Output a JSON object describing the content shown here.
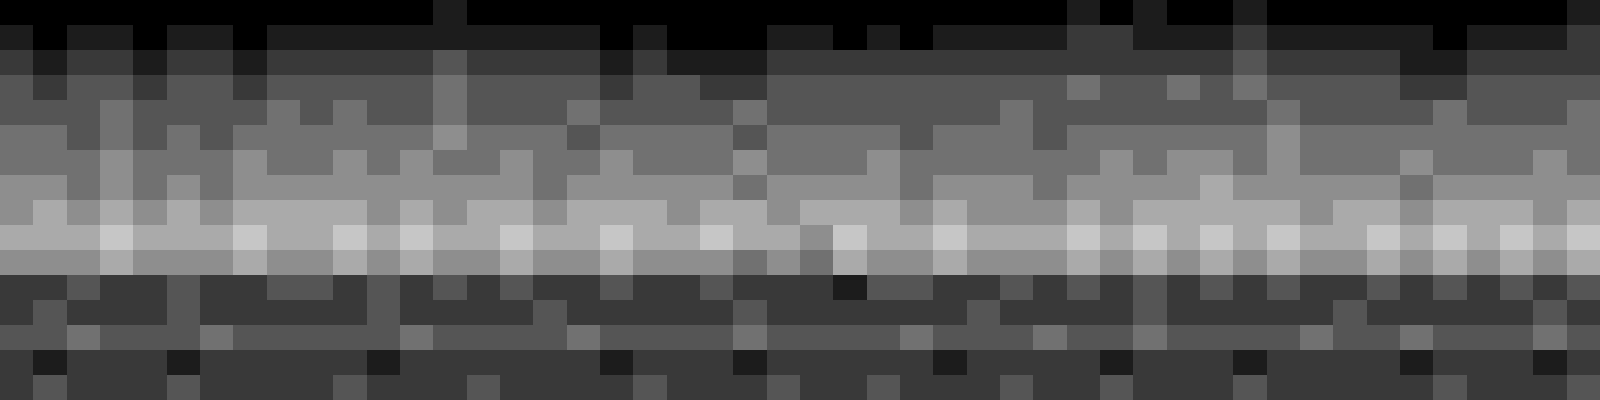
{
  "chart_data": {
    "type": "heatmap",
    "tick_labels": false,
    "color": "#ffffff",
    "zlim": [
      0,
      9
    ],
    "cells": [
      [
        0,
        0,
        0,
        0,
        0,
        0,
        0,
        0,
        0,
        0,
        0,
        0,
        0,
        1,
        0,
        0,
        0,
        0,
        0,
        0,
        0,
        0,
        0,
        0,
        0,
        0,
        0,
        0,
        0,
        0,
        0,
        0,
        1,
        0,
        1,
        0,
        0,
        1,
        0,
        0,
        0,
        0,
        0,
        0,
        0,
        0,
        0,
        1
      ],
      [
        1,
        0,
        1,
        1,
        0,
        1,
        1,
        0,
        1,
        1,
        1,
        1,
        1,
        1,
        1,
        1,
        1,
        1,
        0,
        1,
        0,
        0,
        0,
        1,
        1,
        0,
        1,
        0,
        1,
        1,
        1,
        1,
        2,
        2,
        1,
        1,
        1,
        2,
        1,
        1,
        1,
        1,
        1,
        0,
        1,
        1,
        1,
        2
      ],
      [
        2,
        1,
        2,
        2,
        1,
        2,
        2,
        1,
        2,
        2,
        2,
        2,
        2,
        3,
        2,
        2,
        2,
        2,
        1,
        2,
        1,
        1,
        1,
        2,
        2,
        2,
        2,
        2,
        2,
        2,
        2,
        2,
        2,
        2,
        2,
        2,
        2,
        3,
        2,
        2,
        2,
        2,
        1,
        1,
        2,
        2,
        2,
        2
      ],
      [
        3,
        2,
        3,
        3,
        2,
        3,
        3,
        2,
        3,
        3,
        3,
        3,
        3,
        4,
        3,
        3,
        3,
        3,
        2,
        3,
        3,
        2,
        2,
        3,
        3,
        3,
        3,
        3,
        3,
        3,
        3,
        3,
        4,
        3,
        3,
        4,
        3,
        4,
        3,
        3,
        3,
        3,
        2,
        2,
        3,
        3,
        3,
        3
      ],
      [
        3,
        3,
        3,
        4,
        3,
        3,
        3,
        3,
        4,
        3,
        4,
        3,
        3,
        4,
        3,
        3,
        3,
        4,
        3,
        3,
        3,
        3,
        4,
        3,
        3,
        3,
        3,
        3,
        3,
        3,
        4,
        3,
        3,
        3,
        3,
        3,
        3,
        3,
        4,
        3,
        3,
        3,
        3,
        4,
        3,
        3,
        3,
        4
      ],
      [
        4,
        4,
        3,
        4,
        3,
        4,
        3,
        4,
        4,
        4,
        4,
        4,
        4,
        5,
        4,
        4,
        4,
        3,
        4,
        4,
        4,
        4,
        3,
        4,
        4,
        4,
        4,
        3,
        4,
        4,
        4,
        3,
        4,
        4,
        4,
        4,
        4,
        4,
        5,
        4,
        4,
        4,
        4,
        4,
        4,
        4,
        4,
        4
      ],
      [
        4,
        4,
        4,
        5,
        4,
        4,
        4,
        5,
        4,
        4,
        5,
        4,
        5,
        4,
        4,
        5,
        4,
        4,
        5,
        4,
        4,
        4,
        5,
        4,
        4,
        4,
        5,
        4,
        4,
        4,
        4,
        4,
        4,
        5,
        4,
        5,
        5,
        4,
        5,
        4,
        4,
        4,
        5,
        4,
        4,
        4,
        5,
        4
      ],
      [
        5,
        5,
        4,
        5,
        4,
        5,
        4,
        5,
        5,
        5,
        5,
        5,
        5,
        5,
        5,
        5,
        4,
        5,
        5,
        5,
        5,
        5,
        4,
        5,
        5,
        5,
        5,
        4,
        5,
        5,
        5,
        4,
        5,
        5,
        5,
        5,
        6,
        5,
        5,
        5,
        5,
        5,
        4,
        5,
        5,
        5,
        5,
        5
      ],
      [
        5,
        6,
        5,
        6,
        5,
        6,
        5,
        6,
        6,
        6,
        6,
        5,
        6,
        5,
        6,
        6,
        5,
        6,
        6,
        6,
        5,
        6,
        6,
        5,
        6,
        6,
        6,
        5,
        6,
        5,
        5,
        5,
        6,
        5,
        6,
        6,
        6,
        6,
        6,
        5,
        6,
        6,
        5,
        6,
        6,
        6,
        5,
        6
      ],
      [
        6,
        6,
        6,
        7,
        6,
        6,
        6,
        7,
        6,
        6,
        7,
        6,
        7,
        6,
        6,
        7,
        6,
        6,
        7,
        6,
        6,
        7,
        6,
        6,
        5,
        7,
        6,
        6,
        7,
        6,
        6,
        6,
        7,
        6,
        7,
        6,
        7,
        6,
        7,
        6,
        6,
        7,
        6,
        7,
        6,
        7,
        6,
        7
      ],
      [
        5,
        5,
        5,
        6,
        5,
        5,
        5,
        6,
        5,
        5,
        6,
        5,
        6,
        5,
        5,
        6,
        5,
        5,
        6,
        5,
        5,
        5,
        4,
        5,
        4,
        6,
        5,
        5,
        6,
        5,
        5,
        5,
        6,
        5,
        6,
        5,
        6,
        5,
        6,
        5,
        5,
        6,
        5,
        6,
        5,
        6,
        5,
        6
      ],
      [
        2,
        2,
        3,
        2,
        2,
        3,
        2,
        2,
        3,
        3,
        2,
        3,
        2,
        3,
        2,
        3,
        2,
        2,
        3,
        2,
        2,
        3,
        2,
        2,
        2,
        1,
        3,
        3,
        2,
        2,
        3,
        2,
        3,
        2,
        3,
        2,
        3,
        2,
        3,
        2,
        2,
        3,
        2,
        3,
        2,
        3,
        2,
        3
      ],
      [
        2,
        3,
        2,
        2,
        2,
        3,
        2,
        2,
        2,
        2,
        2,
        3,
        2,
        2,
        2,
        2,
        3,
        2,
        2,
        2,
        2,
        2,
        3,
        2,
        2,
        2,
        2,
        2,
        2,
        3,
        2,
        2,
        2,
        2,
        3,
        2,
        2,
        2,
        2,
        2,
        3,
        2,
        2,
        2,
        2,
        2,
        3,
        2
      ],
      [
        3,
        3,
        4,
        3,
        3,
        3,
        4,
        3,
        3,
        3,
        3,
        3,
        4,
        3,
        3,
        3,
        3,
        4,
        3,
        3,
        3,
        3,
        4,
        3,
        3,
        3,
        3,
        4,
        3,
        3,
        3,
        4,
        3,
        3,
        4,
        3,
        3,
        3,
        3,
        4,
        3,
        3,
        4,
        3,
        3,
        3,
        4,
        3
      ],
      [
        2,
        1,
        2,
        2,
        2,
        1,
        2,
        2,
        2,
        2,
        2,
        1,
        2,
        2,
        2,
        2,
        2,
        2,
        1,
        2,
        2,
        2,
        1,
        2,
        2,
        2,
        2,
        2,
        1,
        2,
        2,
        2,
        2,
        1,
        2,
        2,
        2,
        1,
        2,
        2,
        2,
        2,
        1,
        2,
        2,
        2,
        1,
        2
      ],
      [
        2,
        3,
        2,
        2,
        2,
        3,
        2,
        2,
        2,
        2,
        3,
        2,
        2,
        2,
        3,
        2,
        2,
        2,
        2,
        3,
        2,
        2,
        2,
        3,
        2,
        2,
        3,
        2,
        2,
        2,
        3,
        2,
        2,
        3,
        2,
        2,
        2,
        3,
        2,
        2,
        2,
        2,
        2,
        3,
        2,
        2,
        2,
        3
      ]
    ]
  }
}
